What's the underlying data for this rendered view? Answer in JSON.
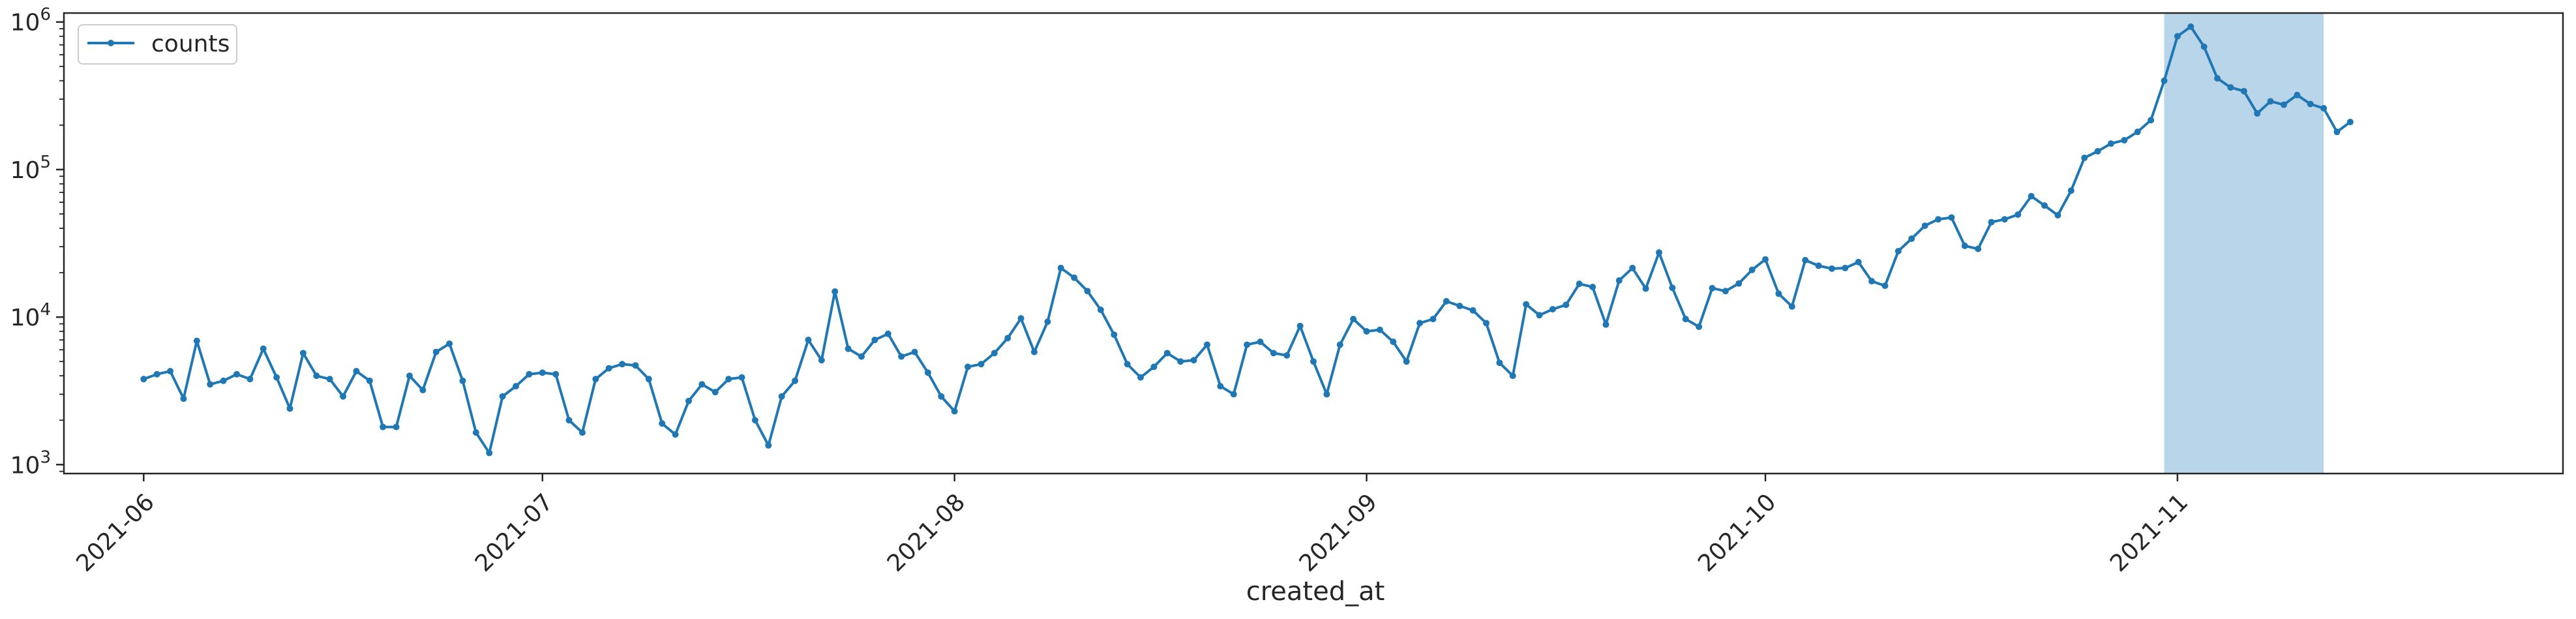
{
  "chart_data": {
    "type": "line",
    "title": "",
    "xlabel": "created_at",
    "ylabel": "",
    "yscale": "log",
    "ylim": [
      870,
      1150000
    ],
    "xlim": [
      "2021-05-26",
      "2021-11-30"
    ],
    "grid": false,
    "legend": {
      "location": "upper left",
      "entries": [
        "counts"
      ]
    },
    "x_ticks": [
      "2021-06-01",
      "2021-07-01",
      "2021-08-01",
      "2021-09-01",
      "2021-10-01",
      "2021-11-01"
    ],
    "x_tick_labels": [
      "2021-06",
      "2021-07",
      "2021-08",
      "2021-09",
      "2021-10",
      "2021-11"
    ],
    "y_ticks": [
      1000,
      10000,
      100000,
      1000000
    ],
    "y_tick_labels": [
      {
        "base": "10",
        "exp": "3"
      },
      {
        "base": "10",
        "exp": "4"
      },
      {
        "base": "10",
        "exp": "5"
      },
      {
        "base": "10",
        "exp": "6"
      }
    ],
    "highlight": {
      "start": "2021-10-31",
      "end": "2021-11-12",
      "color": "#b9d5e9"
    },
    "series_color": "#1f77b4",
    "series": [
      {
        "name": "counts",
        "start_date": "2021-06-01",
        "values": [
          3800,
          4100,
          4300,
          2800,
          6900,
          3500,
          3700,
          4100,
          3800,
          6100,
          3900,
          2400,
          5700,
          4000,
          3800,
          2900,
          4300,
          3700,
          1800,
          1800,
          4000,
          3200,
          5800,
          6600,
          3700,
          1650,
          1200,
          2900,
          3400,
          4100,
          4200,
          4100,
          2000,
          1650,
          3800,
          4500,
          4800,
          4700,
          3800,
          1900,
          1600,
          2700,
          3500,
          3100,
          3800,
          3900,
          2000,
          1350,
          2900,
          3700,
          7000,
          5100,
          14900,
          6100,
          5400,
          7000,
          7700,
          5400,
          5800,
          4200,
          2900,
          2300,
          4600,
          4800,
          5700,
          7200,
          9800,
          5800,
          9300,
          21500,
          18500,
          15000,
          11200,
          7600,
          4800,
          3900,
          4600,
          5700,
          5000,
          5100,
          6500,
          3400,
          3000,
          6500,
          6800,
          5700,
          5500,
          8700,
          5000,
          3000,
          6500,
          9700,
          8000,
          8200,
          6800,
          5000,
          9100,
          9700,
          12800,
          11900,
          11100,
          9100,
          4900,
          4000,
          12200,
          10300,
          11300,
          12100,
          16800,
          16000,
          8900,
          17700,
          21500,
          15600,
          27400,
          15800,
          9700,
          8600,
          15700,
          15000,
          16900,
          20900,
          24600,
          14400,
          11800,
          24300,
          22300,
          21300,
          21500,
          23600,
          17500,
          16300,
          28000,
          34000,
          41600,
          46000,
          47300,
          30400,
          29000,
          44000,
          46000,
          49500,
          66000,
          57000,
          49000,
          72000,
          120000,
          133000,
          150000,
          158000,
          180000,
          216000,
          400000,
          800000,
          930000,
          680000,
          415000,
          360000,
          340000,
          240000,
          290000,
          275000,
          320000,
          278000,
          260000,
          180000,
          210000
        ]
      }
    ]
  }
}
